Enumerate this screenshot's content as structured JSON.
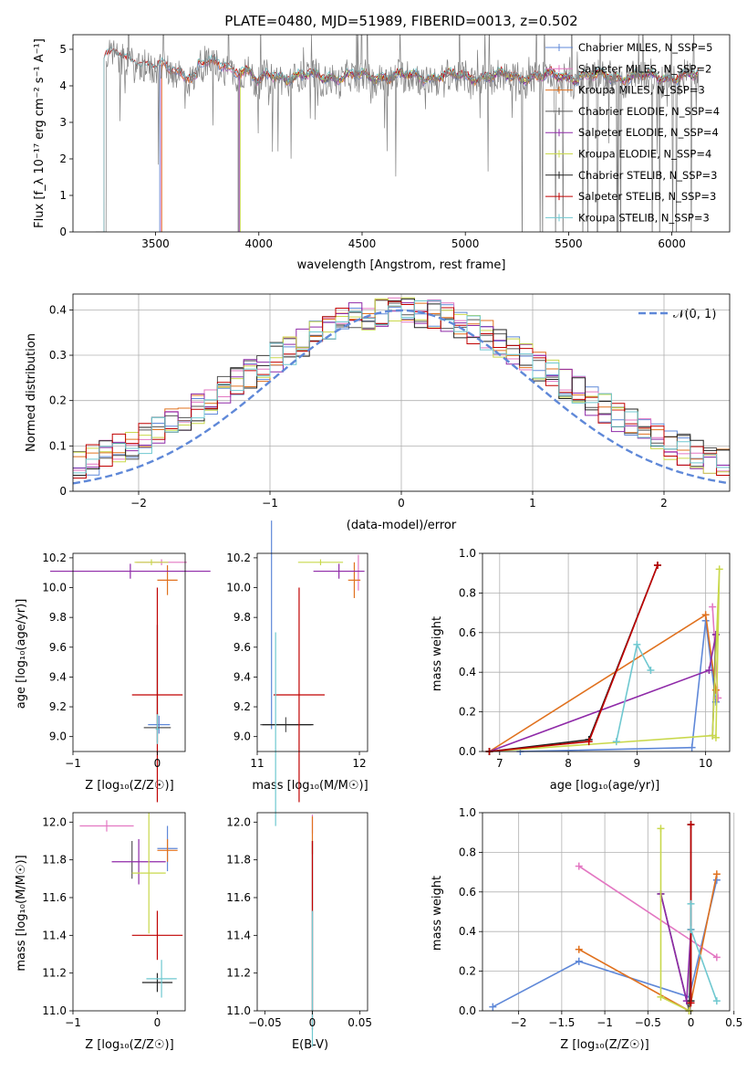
{
  "colors": {
    "series": [
      "#5f88d8",
      "#e377c2",
      "#e0711e",
      "#555555",
      "#8f2aa8",
      "#c9d84c",
      "#222222",
      "#c00000",
      "#6fc8d0"
    ],
    "gauss": "#5f88d8"
  },
  "chart_data": [
    {
      "id": "spectrum",
      "type": "line",
      "title": "PLATE=0480, MJD=51989, FIBERID=0013, z=0.502",
      "xlabel": "wavelength [Angstrom, rest frame]",
      "ylabel": "Flux [f_λ 10⁻¹⁷ erg cm⁻² s⁻¹ A⁻¹]",
      "xlim": [
        3100,
        6280
      ],
      "ylim": [
        0,
        5.4
      ],
      "xticks": [
        3500,
        4000,
        4500,
        5000,
        5500,
        6000
      ],
      "yticks": [
        0,
        1,
        2,
        3,
        4,
        5
      ],
      "legend": "top-right",
      "series": [
        {
          "name": "Chabrier MILES, N_SSP=5",
          "model": true,
          "x_start": 3520
        },
        {
          "name": "Salpeter MILES, N_SSP=2",
          "model": true,
          "x_start": 3525
        },
        {
          "name": "Kroupa MILES, N_SSP=3",
          "model": true,
          "x_start": 3530
        },
        {
          "name": "Chabrier ELODIE, N_SSP=4",
          "model": true,
          "x_start": 3900
        },
        {
          "name": "Salpeter ELODIE, N_SSP=4",
          "model": true,
          "x_start": 3905
        },
        {
          "name": "Kroupa ELODIE, N_SSP=4",
          "model": true,
          "x_start": 3910
        },
        {
          "name": "Chabrier STELIB, N_SSP=3",
          "model": false,
          "x_start": 3270
        },
        {
          "name": "Salpeter STELIB, N_SSP=3",
          "model": true,
          "x_start": 3250
        },
        {
          "name": "Kroupa STELIB, N_SSP=3",
          "model": true,
          "x_start": 3250
        }
      ]
    },
    {
      "id": "residuals",
      "type": "bar",
      "xlabel": "(data-model)/error",
      "ylabel": "Normed distribution",
      "xlim": [
        -2.5,
        2.5
      ],
      "ylim": [
        0,
        0.435
      ],
      "xticks": [
        -2,
        -1,
        0,
        1,
        2
      ],
      "yticks": [
        0.0,
        0.1,
        0.2,
        0.3,
        0.4
      ],
      "legend": "top-right",
      "gauss_label": "𝒩(0, 1)",
      "bin_width": 0.1
    },
    {
      "id": "age-vs-z",
      "type": "scatter",
      "xlabel": "Z [log₁₀(Z/Z☉)]",
      "ylabel": "age  [log₁₀(age/yr)]",
      "xlim": [
        -1,
        0.33
      ],
      "ylim": [
        8.9,
        10.23
      ],
      "xticks": [
        -1,
        0
      ],
      "yticks": [
        9.0,
        9.2,
        9.4,
        9.6,
        9.8,
        10.0,
        10.2
      ],
      "points": [
        {
          "s": 0,
          "x": 0.02,
          "y": 9.08,
          "xerr": 0.13,
          "yerr": 0.06
        },
        {
          "s": 1,
          "x": 0.05,
          "y": 10.17,
          "xerr": 0.3,
          "yerr": 0.02
        },
        {
          "s": 2,
          "x": 0.12,
          "y": 10.05,
          "xerr": 0.12,
          "yerr": 0.1
        },
        {
          "s": 3,
          "x": 0.0,
          "y": 9.06,
          "xerr": 0.16,
          "yerr": 0.1
        },
        {
          "s": 4,
          "x": -0.32,
          "y": 10.11,
          "xerr": 0.95,
          "yerr": 0.05
        },
        {
          "s": 5,
          "x": -0.07,
          "y": 10.17,
          "xerr": 0.2,
          "yerr": 0.02
        },
        {
          "s": 6,
          "x": 0.0,
          "y": 9.45,
          "xerr": 0.0,
          "yerr": 0.3
        },
        {
          "s": 7,
          "x": 0.0,
          "y": 9.28,
          "xerr": 0.3,
          "yerr": 0.72
        },
        {
          "s": 8,
          "x": 0.0,
          "y": 9.05,
          "xerr": 0.02,
          "yerr": 0.1
        }
      ]
    },
    {
      "id": "age-vs-mass",
      "type": "scatter",
      "xlabel": "mass [log₁₀(M/M☉)]",
      "ylabel": "",
      "xlim": [
        11,
        12.08
      ],
      "ylim": [
        8.9,
        10.23
      ],
      "xticks": [
        11,
        12
      ],
      "yticks": [
        9.0,
        9.2,
        9.4,
        9.6,
        9.8,
        10.0,
        10.2
      ],
      "points": [
        {
          "s": 0,
          "x": 11.14,
          "y": 9.75,
          "xerr": 0.0,
          "yerr": 0.7
        },
        {
          "s": 1,
          "x": 11.99,
          "y": 10.1,
          "xerr": 0.0,
          "yerr": 0.12
        },
        {
          "s": 2,
          "x": 11.95,
          "y": 10.05,
          "xerr": 0.06,
          "yerr": 0.12
        },
        {
          "s": 3,
          "x": 11.28,
          "y": 9.08,
          "xerr": 0.25,
          "yerr": 0.05
        },
        {
          "s": 4,
          "x": 11.8,
          "y": 10.11,
          "xerr": 0.25,
          "yerr": 0.05
        },
        {
          "s": 5,
          "x": 11.62,
          "y": 10.17,
          "xerr": 0.22,
          "yerr": 0.02
        },
        {
          "s": 6,
          "x": 11.3,
          "y": 9.08,
          "xerr": 0.25,
          "yerr": 0.0
        },
        {
          "s": 7,
          "x": 11.41,
          "y": 9.28,
          "xerr": 0.25,
          "yerr": 0.72
        },
        {
          "s": 8,
          "x": 11.18,
          "y": 9.05,
          "xerr": 0.0,
          "yerr": 0.65
        }
      ]
    },
    {
      "id": "weight-vs-age",
      "type": "line",
      "xlabel": "age  [log₁₀(age/yr)]",
      "ylabel": "mass weight",
      "xlim": [
        6.75,
        10.35
      ],
      "ylim": [
        0,
        1.0
      ],
      "xticks": [
        7,
        8,
        9,
        10
      ],
      "yticks": [
        0.0,
        0.2,
        0.4,
        0.6,
        0.8,
        1.0
      ],
      "grid": true,
      "series": [
        {
          "s": 0,
          "x": [
            7.3,
            9.8,
            10.0,
            10.15
          ],
          "y": [
            0.0,
            0.02,
            0.66,
            0.25
          ]
        },
        {
          "s": 1,
          "x": [
            10.1,
            10.18
          ],
          "y": [
            0.73,
            0.27
          ]
        },
        {
          "s": 2,
          "x": [
            6.85,
            10.0,
            10.15
          ],
          "y": [
            0.0,
            0.69,
            0.31
          ]
        },
        {
          "s": 3,
          "x": [
            10.1,
            10.15
          ],
          "y": [
            0.08,
            0.59
          ]
        },
        {
          "s": 4,
          "x": [
            6.85,
            10.05,
            10.15
          ],
          "y": [
            0.0,
            0.41,
            0.59
          ]
        },
        {
          "s": 5,
          "x": [
            6.85,
            10.1,
            10.2,
            10.15
          ],
          "y": [
            0.0,
            0.08,
            0.92,
            0.07
          ]
        },
        {
          "s": 6,
          "x": [
            6.85,
            8.3,
            9.3
          ],
          "y": [
            0.0,
            0.06,
            0.94
          ]
        },
        {
          "s": 7,
          "x": [
            6.85,
            8.3,
            9.3
          ],
          "y": [
            0.0,
            0.05,
            0.94
          ]
        },
        {
          "s": 8,
          "x": [
            8.7,
            9.0,
            9.2
          ],
          "y": [
            0.05,
            0.54,
            0.41
          ]
        }
      ]
    },
    {
      "id": "mass-vs-z",
      "type": "scatter",
      "xlabel": "Z [log₁₀(Z/Z☉)]",
      "ylabel": "mass [log₁₀(M/M☉)]",
      "xlim": [
        -1,
        0.33
      ],
      "ylim": [
        11.0,
        12.05
      ],
      "xticks": [
        -1,
        0
      ],
      "yticks": [
        11.0,
        11.2,
        11.4,
        11.6,
        11.8,
        12.0
      ],
      "points": [
        {
          "s": 0,
          "x": 0.12,
          "y": 11.86,
          "xerr": 0.12,
          "yerr": 0.12
        },
        {
          "s": 1,
          "x": -0.6,
          "y": 11.98,
          "xerr": 0.32,
          "yerr": 0.03
        },
        {
          "s": 2,
          "x": 0.12,
          "y": 11.85,
          "xerr": 0.12,
          "yerr": 0.06
        },
        {
          "s": 3,
          "x": -0.3,
          "y": 11.8,
          "xerr": 0.0,
          "yerr": 0.1
        },
        {
          "s": 4,
          "x": -0.22,
          "y": 11.79,
          "xerr": 0.32,
          "yerr": 0.12
        },
        {
          "s": 5,
          "x": -0.1,
          "y": 11.73,
          "xerr": 0.2,
          "yerr": 0.32
        },
        {
          "s": 6,
          "x": 0.0,
          "y": 11.15,
          "xerr": 0.18,
          "yerr": 0.05
        },
        {
          "s": 7,
          "x": 0.0,
          "y": 11.4,
          "xerr": 0.3,
          "yerr": 0.13
        },
        {
          "s": 8,
          "x": 0.05,
          "y": 11.17,
          "xerr": 0.18,
          "yerr": 0.1
        }
      ]
    },
    {
      "id": "mass-vs-ebv",
      "type": "scatter",
      "xlabel": "E(B-V)",
      "ylabel": "",
      "xlim": [
        -0.058,
        0.058
      ],
      "ylim": [
        11.0,
        12.05
      ],
      "xticks": [
        -0.05,
        0.0,
        0.05
      ],
      "yticks": [
        11.0,
        11.2,
        11.4,
        11.6,
        11.8,
        12.0
      ],
      "points": [
        {
          "s": 1,
          "x": 0.0,
          "y": 11.99,
          "xerr": 0.0,
          "yerr": 0.05
        },
        {
          "s": 2,
          "x": 0.0,
          "y": 11.93,
          "xerr": 0.0,
          "yerr": 0.1
        },
        {
          "s": 6,
          "x": 0.0,
          "y": 11.45,
          "xerr": 0.0,
          "yerr": 0.45
        },
        {
          "s": 7,
          "x": 0.0,
          "y": 11.4,
          "xerr": 0.0,
          "yerr": 0.5
        },
        {
          "s": 8,
          "x": 0.0,
          "y": 11.17,
          "xerr": 0.0,
          "yerr": 0.36
        }
      ]
    },
    {
      "id": "weight-vs-z",
      "type": "line",
      "xlabel": "Z [log₁₀(Z/Z☉)]",
      "ylabel": "mass weight",
      "xlim": [
        -2.42,
        0.45
      ],
      "ylim": [
        0,
        1.0
      ],
      "xticks": [
        -2.0,
        -1.5,
        -1.0,
        -0.5,
        0.0,
        0.5
      ],
      "yticks": [
        0.0,
        0.2,
        0.4,
        0.6,
        0.8,
        1.0
      ],
      "grid": true,
      "series": [
        {
          "s": 0,
          "x": [
            -2.3,
            -1.3,
            -0.02,
            0.3
          ],
          "y": [
            0.02,
            0.25,
            0.07,
            0.66
          ]
        },
        {
          "s": 1,
          "x": [
            -1.3,
            0.3
          ],
          "y": [
            0.73,
            0.27
          ]
        },
        {
          "s": 2,
          "x": [
            -1.3,
            -0.02,
            0.3
          ],
          "y": [
            0.31,
            0.0,
            0.69
          ]
        },
        {
          "s": 3,
          "x": [
            -0.35,
            -0.02,
            0.0
          ],
          "y": [
            0.59,
            0.0,
            0.41
          ]
        },
        {
          "s": 4,
          "x": [
            -0.35,
            -0.05,
            0.0
          ],
          "y": [
            0.59,
            0.05,
            0.41
          ]
        },
        {
          "s": 5,
          "x": [
            -0.35,
            -0.35,
            -0.02
          ],
          "y": [
            0.92,
            0.07,
            0.0
          ]
        },
        {
          "s": 6,
          "x": [
            0.0,
            0.0
          ],
          "y": [
            0.05,
            0.94
          ]
        },
        {
          "s": 7,
          "x": [
            0.0,
            0.0
          ],
          "y": [
            0.04,
            0.94
          ]
        },
        {
          "s": 8,
          "x": [
            0.0,
            0.0,
            0.3
          ],
          "y": [
            0.54,
            0.41,
            0.05
          ]
        }
      ]
    }
  ]
}
